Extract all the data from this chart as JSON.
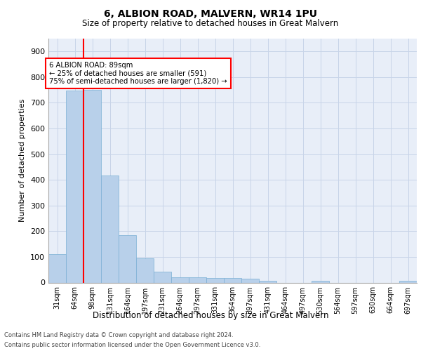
{
  "title1": "6, ALBION ROAD, MALVERN, WR14 1PU",
  "title2": "Size of property relative to detached houses in Great Malvern",
  "xlabel": "Distribution of detached houses by size in Great Malvern",
  "ylabel": "Number of detached properties",
  "categories": [
    "31sqm",
    "64sqm",
    "98sqm",
    "131sqm",
    "164sqm",
    "197sqm",
    "231sqm",
    "264sqm",
    "297sqm",
    "331sqm",
    "364sqm",
    "397sqm",
    "431sqm",
    "464sqm",
    "497sqm",
    "530sqm",
    "564sqm",
    "597sqm",
    "630sqm",
    "664sqm",
    "697sqm"
  ],
  "values": [
    110,
    748,
    750,
    418,
    185,
    95,
    43,
    20,
    20,
    17,
    17,
    15,
    8,
    0,
    0,
    7,
    0,
    0,
    0,
    0,
    8
  ],
  "bar_color": "#b8d0ea",
  "bar_edge_color": "#7aafd4",
  "vline_color": "red",
  "vline_x_index": 1.5,
  "annotation_line1": "6 ALBION ROAD: 89sqm",
  "annotation_line2": "← 25% of detached houses are smaller (591)",
  "annotation_line3": "75% of semi-detached houses are larger (1,820) →",
  "annotation_box_color": "white",
  "annotation_box_edge_color": "red",
  "ylim": [
    0,
    950
  ],
  "yticks": [
    0,
    100,
    200,
    300,
    400,
    500,
    600,
    700,
    800,
    900
  ],
  "grid_color": "#c8d4e8",
  "bg_color": "#e8eef8",
  "footnote1": "Contains HM Land Registry data © Crown copyright and database right 2024.",
  "footnote2": "Contains public sector information licensed under the Open Government Licence v3.0."
}
